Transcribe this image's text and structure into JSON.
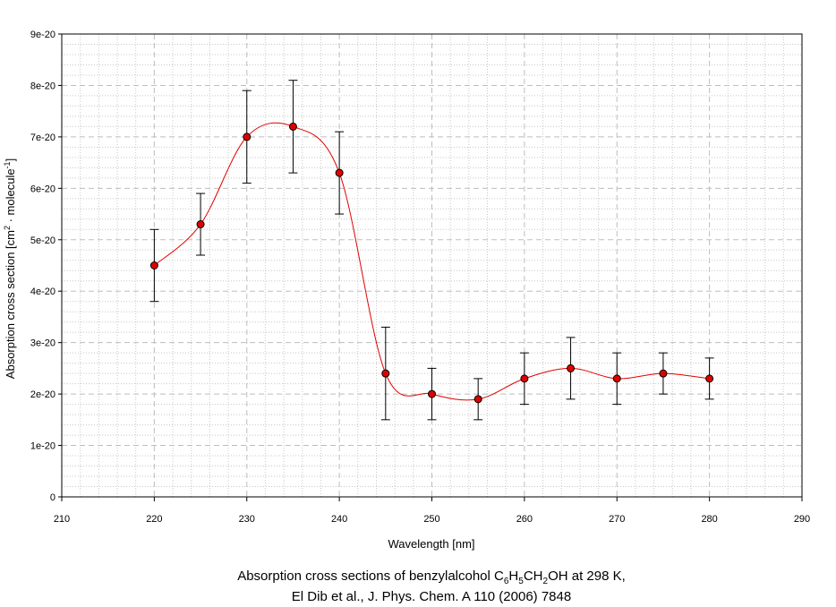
{
  "chart_data": {
    "type": "scatter",
    "xlabel": "Wavelength [nm]",
    "ylabel_prefix": "Absorption cross section [cm",
    "ylabel_sup1": "2",
    "ylabel_mid": " · molecule",
    "ylabel_sup2": "-1",
    "ylabel_suffix": "]",
    "xlim": [
      210,
      290
    ],
    "ylim": [
      0,
      9e-20
    ],
    "x_ticks": [
      "210",
      "220",
      "230",
      "240",
      "250",
      "260",
      "270",
      "280",
      "290"
    ],
    "y_ticks": [
      "0",
      "1e-20",
      "2e-20",
      "3e-20",
      "4e-20",
      "5e-20",
      "6e-20",
      "7e-20",
      "8e-20",
      "9e-20"
    ],
    "grid": true,
    "series": [
      {
        "x": [
          220,
          225,
          230,
          235,
          240,
          245,
          250,
          255,
          260,
          265,
          270,
          275,
          280
        ],
        "y": [
          4.5e-20,
          5.3e-20,
          7e-20,
          7.2e-20,
          6.3e-20,
          2.4e-20,
          2e-20,
          1.9e-20,
          2.3e-20,
          2.5e-20,
          2.3e-20,
          2.4e-20,
          2.3e-20
        ],
        "error": [
          7e-21,
          6e-21,
          9e-21,
          9e-21,
          8e-21,
          9e-21,
          5e-21,
          4e-21,
          5e-21,
          6e-21,
          5e-21,
          4e-21,
          4e-21
        ],
        "marker_color": "#e00000",
        "line_color": "#e00000"
      }
    ]
  },
  "caption": {
    "line1_prefix": "Absorption cross sections of benzylalcohol C",
    "sub1": "6",
    "h": "H",
    "sub2": "5",
    "ch": "CH",
    "sub3": "2",
    "line1_suffix": "OH at 298 K,",
    "line2": "El Dib et al., J. Phys. Chem. A 110 (2006) 7848"
  }
}
